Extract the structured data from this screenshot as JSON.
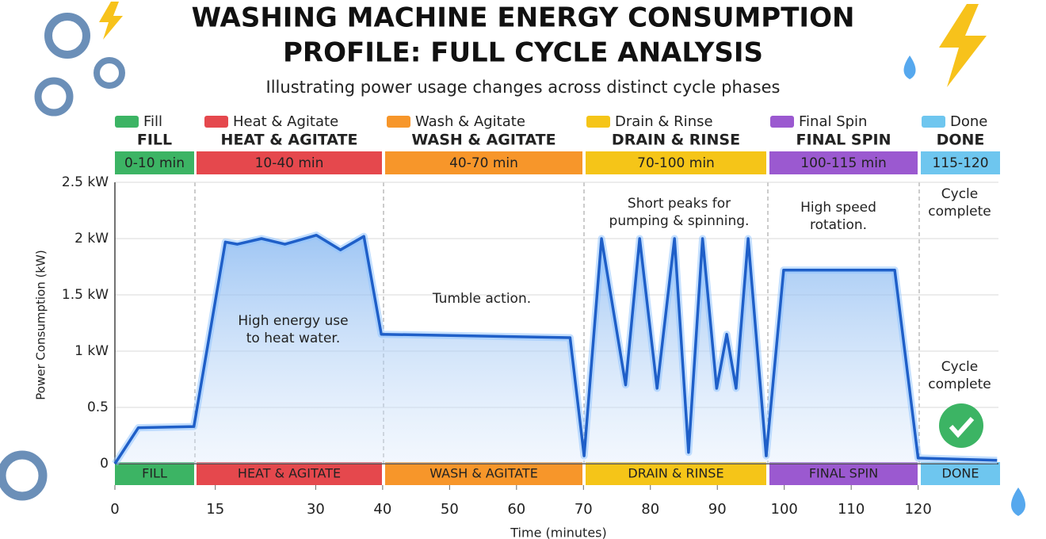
{
  "title_lines": [
    "WASHING MACHINE ENERGY CONSUMPTION",
    "PROFILE: FULL CYCLE ANALYSIS"
  ],
  "subtitle": "Illustrating power usage changes across distinct cycle phases",
  "phases": [
    {
      "legend": "Fill",
      "name": "FILL",
      "range": "0-10 min",
      "color": "#3cb464"
    },
    {
      "legend": "Heat & Agitate",
      "name": "HEAT & AGITATE",
      "range": "10-40 min",
      "color": "#e5484d"
    },
    {
      "legend": "Wash & Agitate",
      "name": "WASH & AGITATE",
      "range": "40-70 min",
      "color": "#f7962a"
    },
    {
      "legend": "Drain & Rinse",
      "name": "DRAIN & RINSE",
      "range": "70-100 min",
      "color": "#f5c518"
    },
    {
      "legend": "Final Spin",
      "name": "FINAL SPIN",
      "range": "100-115 min",
      "color": "#9b59d0"
    },
    {
      "legend": "Done",
      "name": "DONE",
      "range": "115-120",
      "color": "#6ec6ef"
    }
  ],
  "annotations": [
    {
      "lines": [
        "High energy use",
        "to heat water."
      ]
    },
    {
      "lines": [
        "Tumble action."
      ]
    },
    {
      "lines": [
        "Short peaks for",
        "pumping & spinning."
      ]
    },
    {
      "lines": [
        "High speed",
        "rotation."
      ]
    },
    {
      "lines": [
        "Cycle",
        "complete"
      ]
    },
    {
      "lines": [
        "Cycle",
        "complete"
      ]
    }
  ],
  "chart_data": {
    "type": "line",
    "x_label": "Time (minutes)",
    "y_label": "Power Consumption (kW)",
    "x": [
      0,
      3.5,
      11.8,
      16.5,
      18.3,
      21.9,
      25.4,
      30.1,
      33.7,
      37.2,
      39.8,
      68,
      70.1,
      72.7,
      76.3,
      78.4,
      81,
      83.6,
      85.7,
      87.8,
      89.9,
      91.4,
      92.8,
      94.6,
      97.3,
      99.9,
      116.5,
      120,
      131.8
    ],
    "values": [
      0,
      0.32,
      0.33,
      1.97,
      1.95,
      2.0,
      1.95,
      2.03,
      1.9,
      2.02,
      1.15,
      1.12,
      0.07,
      2.0,
      0.7,
      2.0,
      0.67,
      2.0,
      0.1,
      2.0,
      0.67,
      1.15,
      0.67,
      2.0,
      0.07,
      1.72,
      1.72,
      0.05,
      0.03
    ],
    "color": "#1f5fc8",
    "xlim": [
      0,
      132
    ],
    "ylim": [
      0,
      2.5
    ],
    "xticks": [
      0,
      15,
      30,
      40,
      50,
      60,
      70,
      80,
      90,
      100,
      110,
      120
    ],
    "yticks": [
      0,
      0.5,
      {
        "value": 1,
        "label": "1 kW"
      },
      {
        "value": 1.5,
        "label": "1.5 kW"
      },
      {
        "value": 2,
        "label": "2 kW"
      },
      {
        "value": 2.5,
        "label": "2.5 kW"
      }
    ],
    "grid": true
  }
}
